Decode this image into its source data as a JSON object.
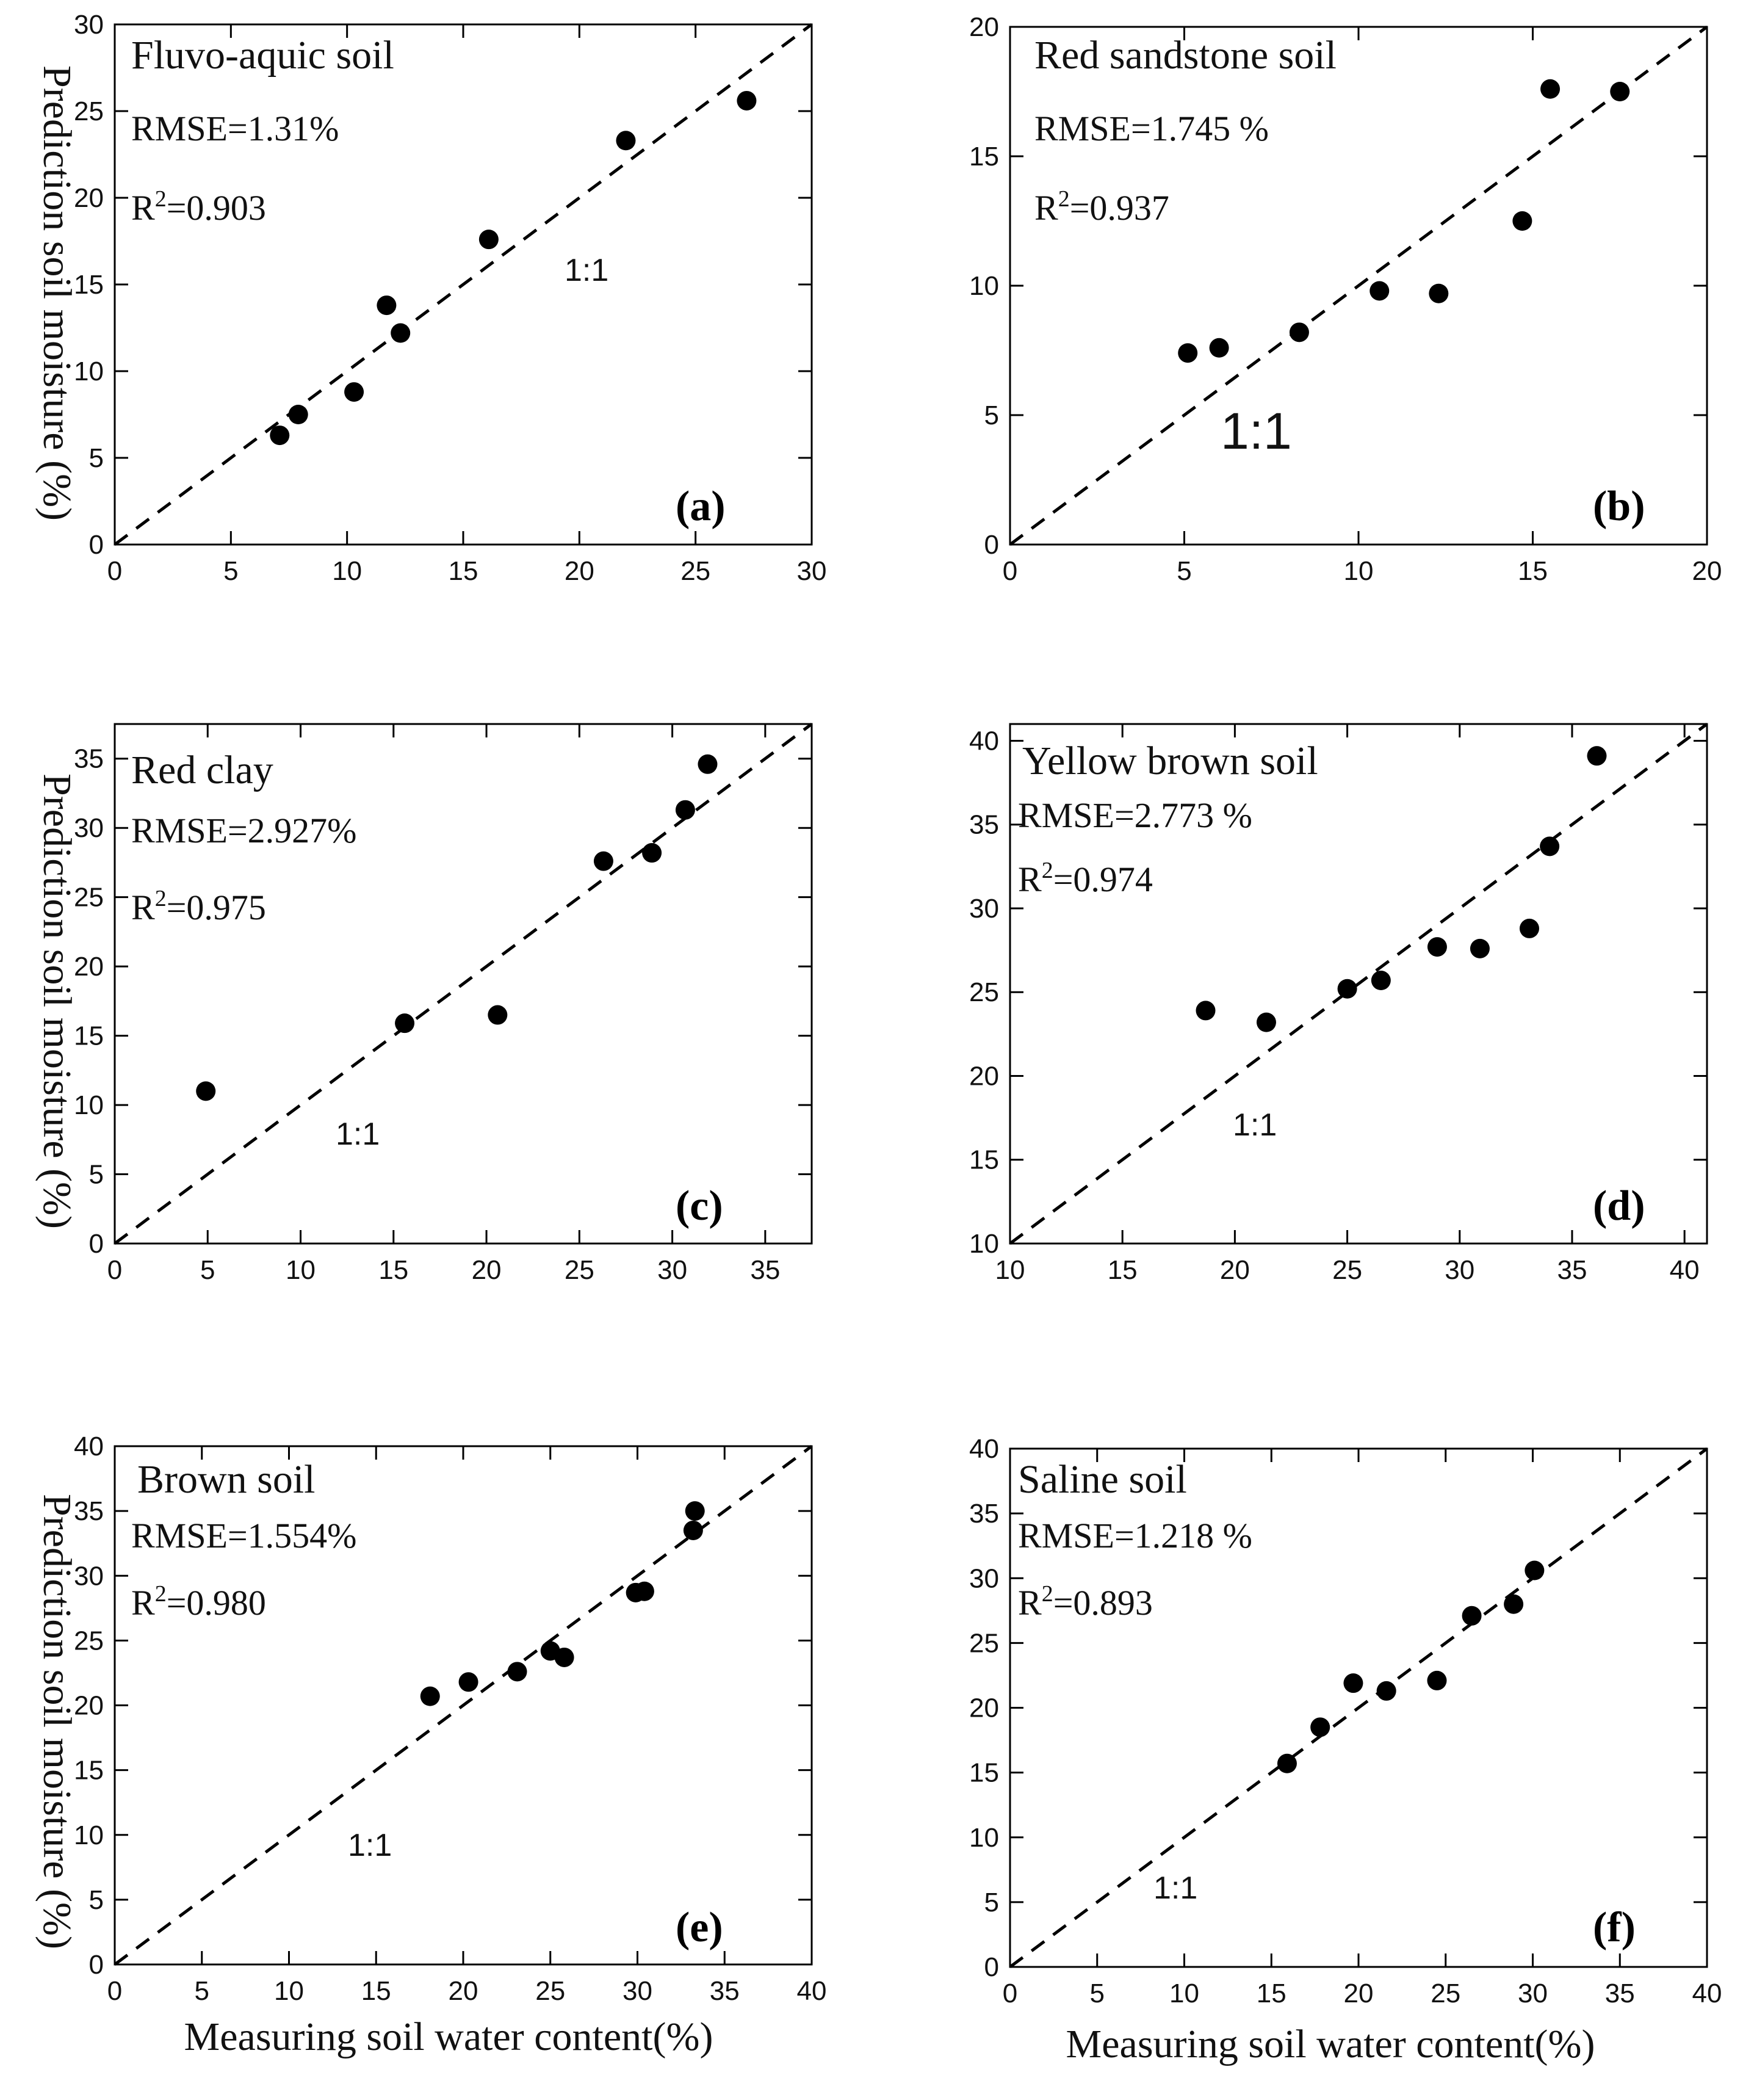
{
  "figure": {
    "y_axis_title": "Prediction soil moisture (%)",
    "x_axis_title": "Measuring soil water content(%)"
  },
  "chart_data": [
    {
      "type": "scatter",
      "panel": "(a)",
      "title": "Fluvo-aquic soil",
      "rmse": "RMSE=1.31%",
      "r2_value": "=0.903",
      "identity_label": "1:1",
      "xlabel": "",
      "ylabel": "Prediction soil moisture (%)",
      "xlim": [
        0,
        30
      ],
      "ylim": [
        0,
        30
      ],
      "xticks": [
        "0",
        "5",
        "10",
        "15",
        "20",
        "25",
        "30"
      ],
      "yticks": [
        "0",
        "5",
        "10",
        "15",
        "20",
        "25",
        "30"
      ],
      "x": [
        7.1,
        7.9,
        10.3,
        11.7,
        12.3,
        16.1,
        22.0,
        27.2
      ],
      "y": [
        6.3,
        7.5,
        8.8,
        13.8,
        12.2,
        17.6,
        23.3,
        25.6
      ]
    },
    {
      "type": "scatter",
      "panel": "(b)",
      "title": "Red sandstone soil",
      "rmse": "RMSE=1.745 %",
      "r2_value": "=0.937",
      "identity_label": "1:1",
      "xlabel": "",
      "ylabel": "",
      "xlim": [
        0,
        20
      ],
      "ylim": [
        0,
        20
      ],
      "xticks": [
        "0",
        "5",
        "10",
        "15",
        "20"
      ],
      "yticks": [
        "0",
        "5",
        "10",
        "15",
        "20"
      ],
      "x": [
        5.1,
        6.0,
        8.3,
        10.6,
        12.3,
        14.7,
        15.5,
        17.5
      ],
      "y": [
        7.4,
        7.6,
        8.2,
        9.8,
        9.7,
        12.5,
        17.6,
        17.5
      ]
    },
    {
      "type": "scatter",
      "panel": "(c)",
      "title": "Red clay",
      "rmse": "RMSE=2.927%",
      "r2_value": "=0.975",
      "identity_label": "1:1",
      "xlabel": "",
      "ylabel": "Prediction soil moisture (%)",
      "xlim": [
        0,
        37.5
      ],
      "ylim": [
        0,
        37.5
      ],
      "xticks": [
        "0",
        "5",
        "10",
        "15",
        "20",
        "25",
        "30",
        "35"
      ],
      "yticks": [
        "0",
        "5",
        "10",
        "15",
        "20",
        "25",
        "30",
        "35"
      ],
      "x": [
        4.9,
        15.6,
        20.6,
        26.3,
        28.9,
        30.7,
        31.9
      ],
      "y": [
        11.0,
        15.9,
        16.5,
        27.6,
        28.2,
        31.3,
        34.6
      ]
    },
    {
      "type": "scatter",
      "panel": "(d)",
      "title": "Yellow brown soil",
      "rmse": "RMSE=2.773 %",
      "r2_value": "=0.974",
      "identity_label": "1:1",
      "xlabel": "",
      "ylabel": "",
      "xlim": [
        10,
        41
      ],
      "ylim": [
        10,
        41
      ],
      "xticks": [
        "10",
        "15",
        "20",
        "25",
        "30",
        "35",
        "40"
      ],
      "yticks": [
        "10",
        "15",
        "20",
        "25",
        "30",
        "35",
        "40"
      ],
      "x": [
        18.7,
        21.4,
        25.0,
        26.5,
        29.0,
        30.9,
        33.1,
        34.0,
        36.1
      ],
      "y": [
        23.9,
        23.2,
        25.2,
        25.7,
        27.7,
        27.6,
        28.8,
        33.7,
        39.1
      ]
    },
    {
      "type": "scatter",
      "panel": "(e)",
      "title": "Brown soil",
      "rmse": "RMSE=1.554%",
      "r2_value": "=0.980",
      "identity_label": "1:1",
      "xlabel": "Measuring soil water content(%)",
      "ylabel": "Prediction soil moisture (%)",
      "xlim": [
        0,
        40
      ],
      "ylim": [
        0,
        40
      ],
      "xticks": [
        "0",
        "5",
        "10",
        "15",
        "20",
        "25",
        "30",
        "35",
        "40"
      ],
      "yticks": [
        "0",
        "5",
        "10",
        "15",
        "20",
        "25",
        "30",
        "35",
        "40"
      ],
      "x": [
        18.1,
        20.3,
        23.1,
        25.0,
        25.8,
        29.9,
        30.4,
        33.2,
        33.3
      ],
      "y": [
        20.7,
        21.8,
        22.6,
        24.2,
        23.7,
        28.7,
        28.8,
        33.5,
        35.0
      ]
    },
    {
      "type": "scatter",
      "panel": "(f)",
      "title": "Saline soil",
      "rmse": "RMSE=1.218 %",
      "r2_value": "=0.893",
      "identity_label": "1:1",
      "xlabel": "Measuring soil water content(%)",
      "ylabel": "",
      "xlim": [
        0,
        40
      ],
      "ylim": [
        0,
        40
      ],
      "xticks": [
        "0",
        "5",
        "10",
        "15",
        "20",
        "25",
        "30",
        "35",
        "40"
      ],
      "yticks": [
        "0",
        "5",
        "10",
        "15",
        "20",
        "25",
        "30",
        "35",
        "40"
      ],
      "x": [
        15.9,
        17.8,
        19.7,
        21.6,
        24.5,
        26.5,
        28.9,
        30.1
      ],
      "y": [
        15.7,
        18.5,
        21.9,
        21.3,
        22.1,
        27.1,
        28.0,
        30.6
      ]
    }
  ]
}
